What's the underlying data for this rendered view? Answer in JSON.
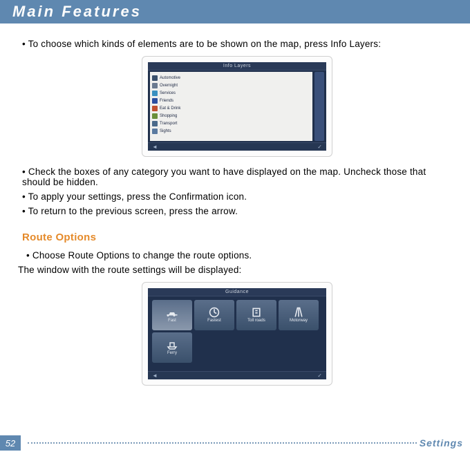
{
  "header": {
    "title": "Main Features"
  },
  "intro_bullet": "• To choose which kinds of elements are to be shown on the map, press Info Layers:",
  "screenshot_a": {
    "title": "Info Layers",
    "layers": [
      {
        "label": "Automotive",
        "color": "#3a506b"
      },
      {
        "label": "Overnight",
        "color": "#6a7a90"
      },
      {
        "label": "Services",
        "color": "#3a90c0"
      },
      {
        "label": "Friends",
        "color": "#2a4ea0"
      },
      {
        "label": "Eat & Drink",
        "color": "#c05030"
      },
      {
        "label": "Shopping",
        "color": "#6a8f3a"
      },
      {
        "label": "Transport",
        "color": "#4a6a8a"
      },
      {
        "label": "Sights",
        "color": "#5a7aa0"
      }
    ]
  },
  "instructions": [
    "• Check the boxes of any category you want to have displayed on the map. Uncheck those that should be hidden.",
    "• To apply your settings, press the Confirmation icon.",
    "• To return to the previous screen, press the arrow."
  ],
  "route_options": {
    "title": "Route Options",
    "bullet": "• Choose Route Options to change the route options.",
    "text": "The window with the route settings will be displayed:"
  },
  "screenshot_b": {
    "title": "Guidance",
    "tiles": [
      {
        "label": "Fast",
        "bg": "#8a98ac"
      },
      {
        "label": "Fastest",
        "bg": "#3a506b"
      },
      {
        "label": "Toll roads",
        "bg": "#3a506b"
      },
      {
        "label": "Motorway",
        "bg": "#3a506b"
      },
      {
        "label": "Ferry",
        "bg": "#3a506b"
      }
    ]
  },
  "footer": {
    "page": "52",
    "label": "Settings"
  }
}
